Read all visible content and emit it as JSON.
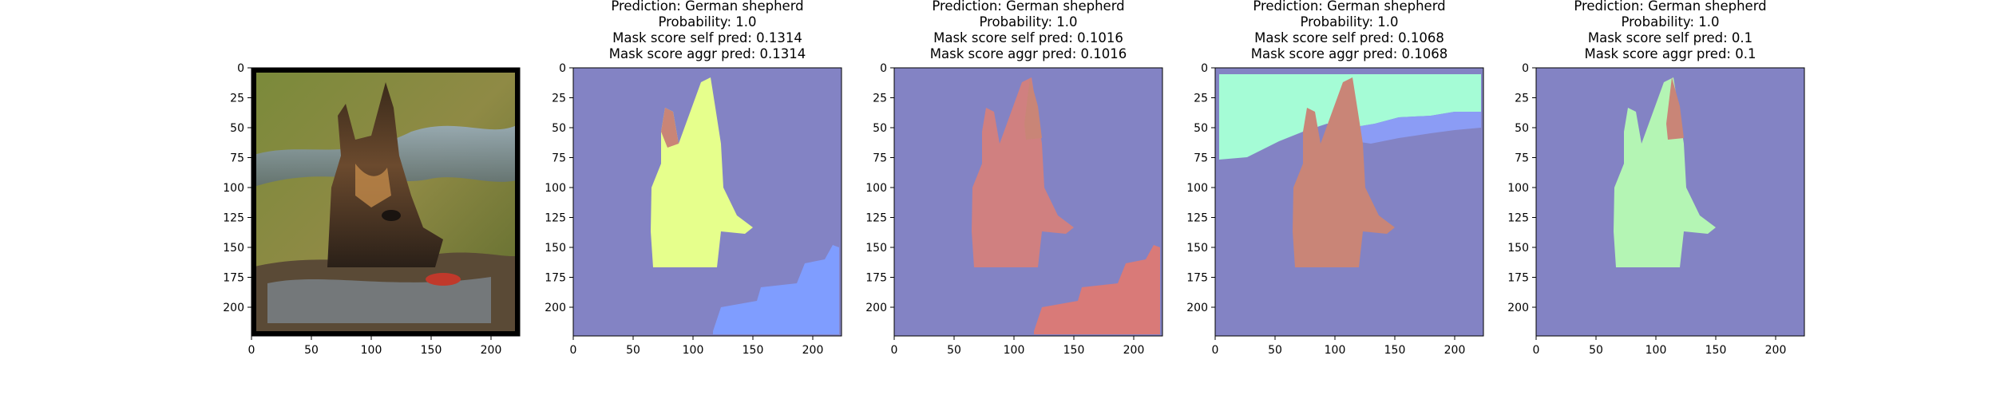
{
  "figure": {
    "panels": [
      {
        "kind": "image",
        "titles": []
      },
      {
        "kind": "mask",
        "titles": [
          "Prediction: German shepherd",
          "Probability: 1.0",
          "Mask score self pred: 0.1314",
          "Mask score aggr pred: 0.1314"
        ]
      },
      {
        "kind": "mask",
        "titles": [
          "Prediction: German shepherd",
          "Probability: 1.0",
          "Mask score self pred: 0.1016",
          "Mask score aggr pred: 0.1016"
        ]
      },
      {
        "kind": "mask",
        "titles": [
          "Prediction: German shepherd",
          "Probability: 1.0",
          "Mask score self pred: 0.1068",
          "Mask score aggr pred: 0.1068"
        ]
      },
      {
        "kind": "mask",
        "titles": [
          "Prediction: German shepherd",
          "Probability: 1.0",
          "Mask score self pred: 0.1",
          "Mask score aggr pred: 0.1"
        ]
      }
    ],
    "colors": {
      "background": "#8383c4",
      "dog_yellow": "#e6ff8c",
      "dog_salmon": "#d08080",
      "dog_mint": "#b4f5b4",
      "ear_salmon": "#c98577",
      "water_blue": "#7f9dff",
      "water_salmon": "#d97a78",
      "sky_aqua": "#a5fcd6",
      "sky_blue": "#8b9cf5"
    }
  },
  "chart_data": {
    "type": "image-grid",
    "xlim": [
      0,
      224
    ],
    "ylim": [
      224,
      0
    ],
    "xticks": [
      0,
      50,
      100,
      150,
      200
    ],
    "yticks": [
      0,
      25,
      50,
      75,
      100,
      125,
      150,
      175,
      200
    ]
  }
}
